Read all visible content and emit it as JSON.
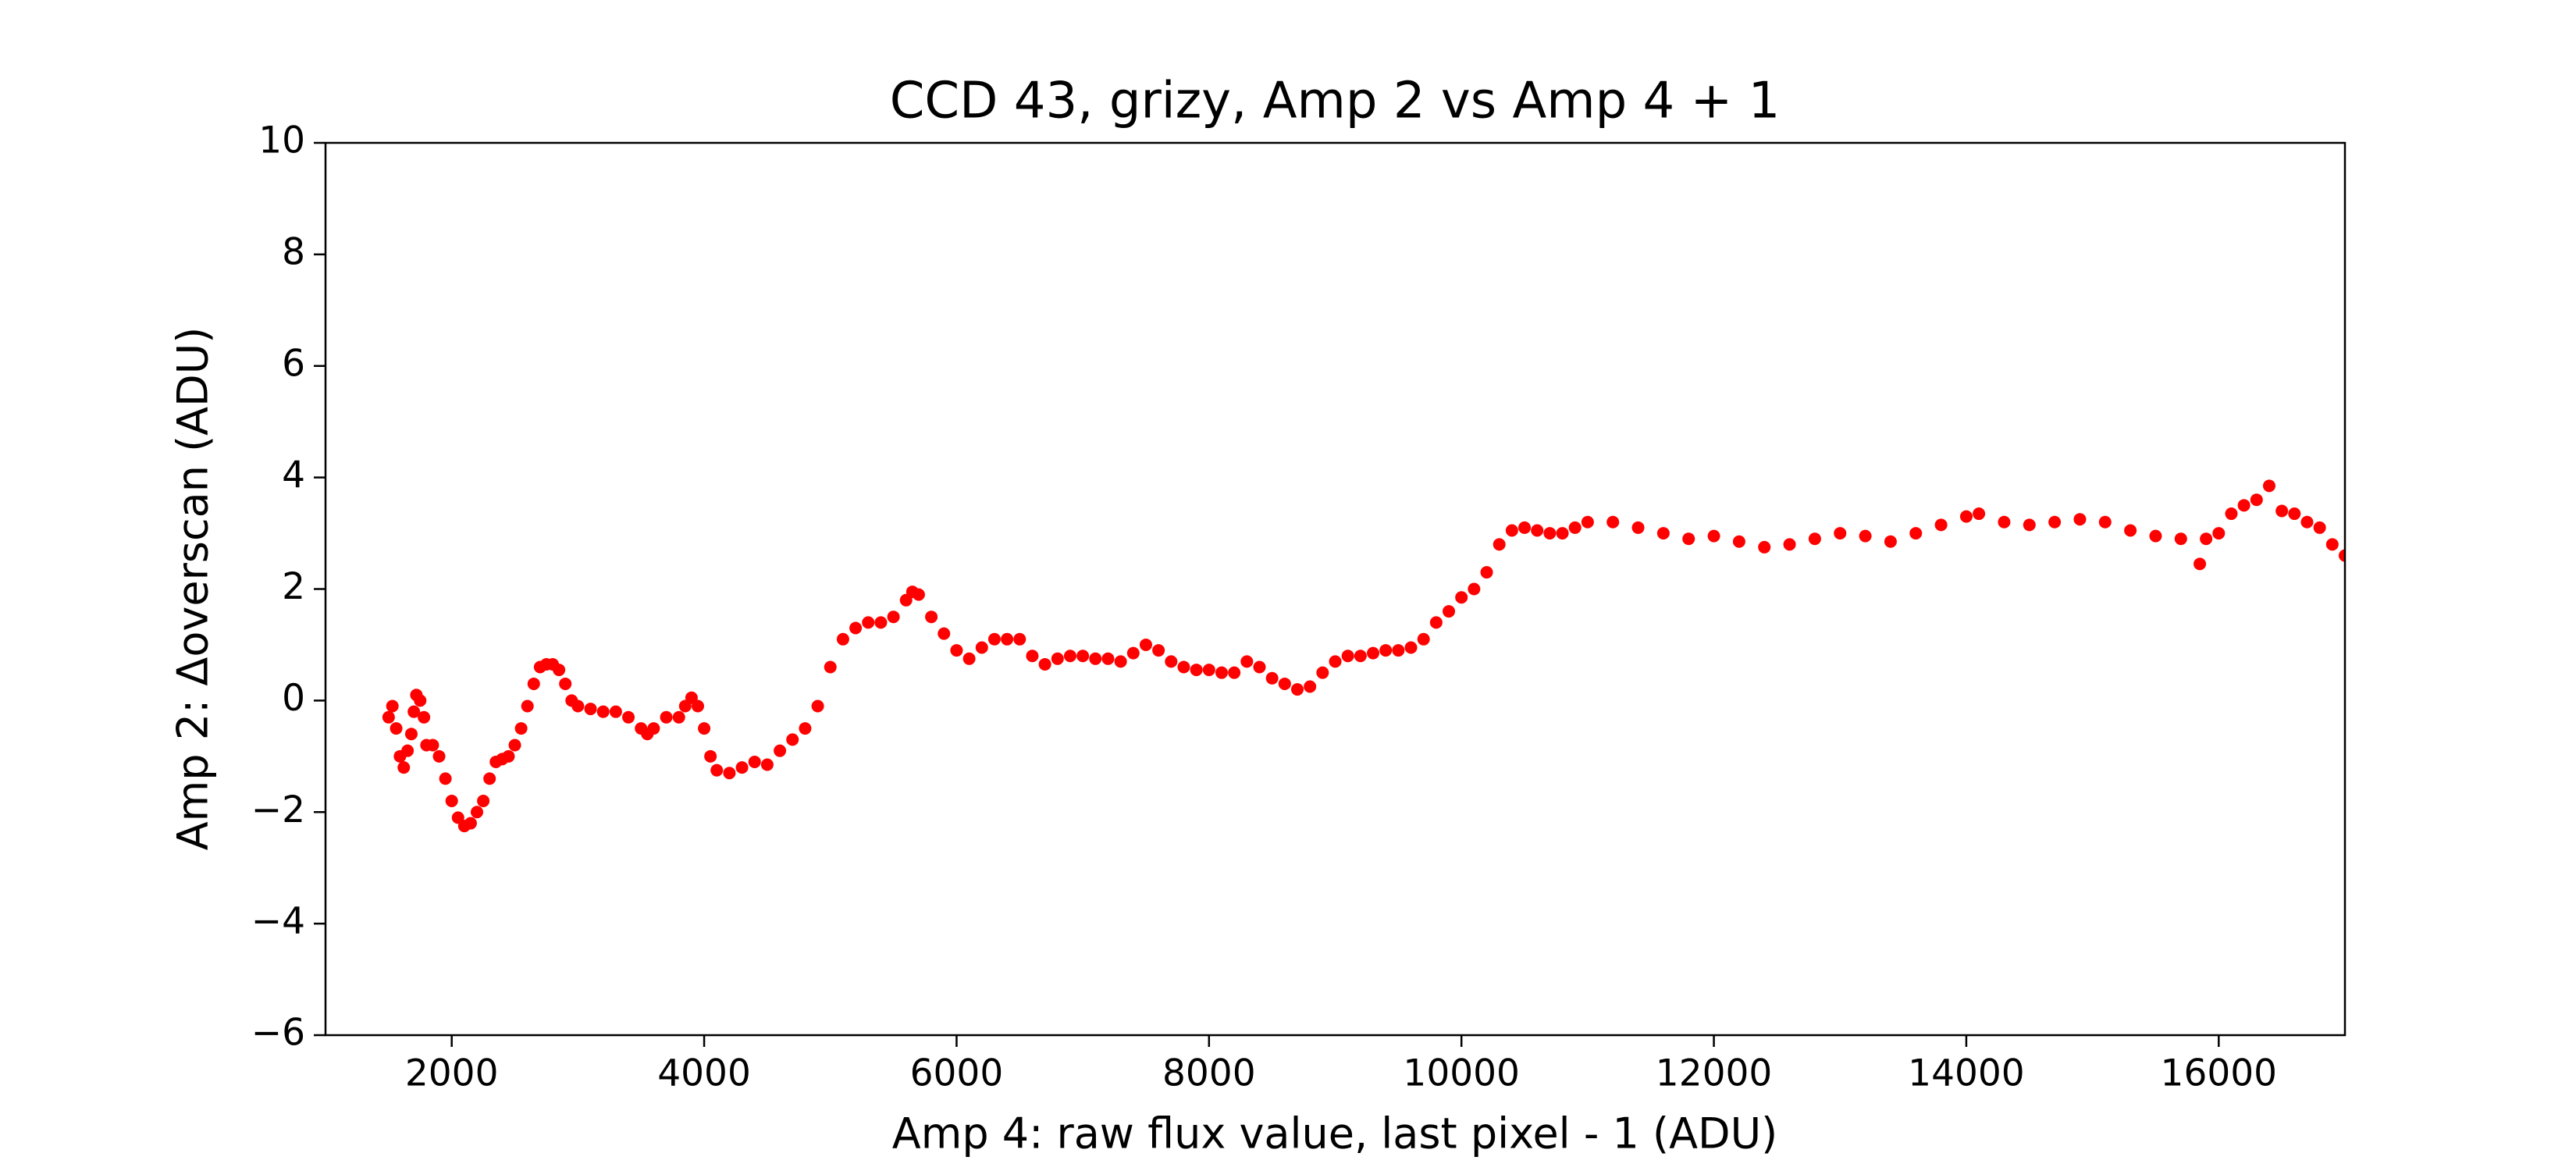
{
  "chart_data": {
    "type": "scatter",
    "title": "CCD 43, grizy, Amp 2 vs Amp 4 + 1",
    "xlabel": "Amp 4: raw flux value, last pixel - 1 (ADU)",
    "ylabel": "Amp 2: Δoverscan (ADU)",
    "color": "#ff0000",
    "xlim": [
      1000,
      17000
    ],
    "ylim": [
      -6,
      10
    ],
    "xticks": [
      2000,
      4000,
      6000,
      8000,
      10000,
      12000,
      14000,
      16000
    ],
    "yticks": [
      {
        "value": -6,
        "label": "−6"
      },
      {
        "value": -4,
        "label": "−4"
      },
      {
        "value": -2,
        "label": "−2"
      },
      0,
      2,
      4,
      6,
      8,
      10
    ],
    "x": [
      1500,
      1530,
      1560,
      1590,
      1620,
      1650,
      1680,
      1700,
      1720,
      1750,
      1780,
      1800,
      1850,
      1900,
      1950,
      2000,
      2050,
      2100,
      2150,
      2200,
      2250,
      2300,
      2350,
      2400,
      2450,
      2500,
      2550,
      2600,
      2650,
      2700,
      2750,
      2800,
      2850,
      2900,
      2950,
      3000,
      3100,
      3200,
      3300,
      3400,
      3500,
      3550,
      3600,
      3700,
      3800,
      3850,
      3900,
      3950,
      4000,
      4050,
      4100,
      4200,
      4300,
      4400,
      4500,
      4600,
      4700,
      4800,
      4900,
      5000,
      5100,
      5200,
      5300,
      5400,
      5500,
      5600,
      5650,
      5700,
      5800,
      5900,
      6000,
      6100,
      6200,
      6300,
      6400,
      6500,
      6600,
      6700,
      6800,
      6900,
      7000,
      7100,
      7200,
      7300,
      7400,
      7500,
      7600,
      7700,
      7800,
      7900,
      8000,
      8100,
      8200,
      8300,
      8400,
      8500,
      8600,
      8700,
      8800,
      8900,
      9000,
      9100,
      9200,
      9300,
      9400,
      9500,
      9600,
      9700,
      9800,
      9900,
      10000,
      10100,
      10200,
      10300,
      10400,
      10500,
      10600,
      10700,
      10800,
      10900,
      11000,
      11200,
      11400,
      11600,
      11800,
      12000,
      12200,
      12400,
      12600,
      12800,
      13000,
      13200,
      13400,
      13600,
      13800,
      14000,
      14100,
      14300,
      14500,
      14700,
      14900,
      15100,
      15300,
      15500,
      15700,
      15850,
      15900,
      16000,
      16100,
      16200,
      16300,
      16400,
      16500,
      16600,
      16700,
      16800,
      16900,
      17000
    ],
    "values": [
      -0.3,
      -0.1,
      -0.5,
      -1.0,
      -1.2,
      -0.9,
      -0.6,
      -0.2,
      0.1,
      0.0,
      -0.3,
      -0.8,
      -0.8,
      -1.0,
      -1.4,
      -1.8,
      -2.1,
      -2.25,
      -2.2,
      -2.0,
      -1.8,
      -1.4,
      -1.1,
      -1.05,
      -1.0,
      -0.8,
      -0.5,
      -0.1,
      0.3,
      0.6,
      0.65,
      0.65,
      0.55,
      0.3,
      0.0,
      -0.1,
      -0.15,
      -0.2,
      -0.2,
      -0.3,
      -0.5,
      -0.6,
      -0.5,
      -0.3,
      -0.3,
      -0.1,
      0.05,
      -0.1,
      -0.5,
      -1.0,
      -1.25,
      -1.3,
      -1.2,
      -1.1,
      -1.15,
      -0.9,
      -0.7,
      -0.5,
      -0.1,
      0.6,
      1.1,
      1.3,
      1.4,
      1.4,
      1.5,
      1.8,
      1.95,
      1.9,
      1.5,
      1.2,
      0.9,
      0.75,
      0.95,
      1.1,
      1.1,
      1.1,
      0.8,
      0.65,
      0.75,
      0.8,
      0.8,
      0.75,
      0.75,
      0.7,
      0.85,
      1.0,
      0.9,
      0.7,
      0.6,
      0.55,
      0.55,
      0.5,
      0.5,
      0.7,
      0.6,
      0.4,
      0.3,
      0.2,
      0.25,
      0.5,
      0.7,
      0.8,
      0.8,
      0.85,
      0.9,
      0.9,
      0.95,
      1.1,
      1.4,
      1.6,
      1.85,
      2.0,
      2.3,
      2.8,
      3.05,
      3.1,
      3.05,
      3.0,
      3.0,
      3.1,
      3.2,
      3.2,
      3.1,
      3.0,
      2.9,
      2.95,
      2.85,
      2.75,
      2.8,
      2.9,
      3.0,
      2.95,
      2.85,
      3.0,
      3.15,
      3.3,
      3.35,
      3.2,
      3.15,
      3.2,
      3.25,
      3.2,
      3.05,
      2.95,
      2.9,
      2.45,
      2.9,
      3.0,
      3.35,
      3.5,
      3.6,
      3.85,
      3.4,
      3.35,
      3.2,
      3.1,
      2.8,
      2.6
    ]
  }
}
